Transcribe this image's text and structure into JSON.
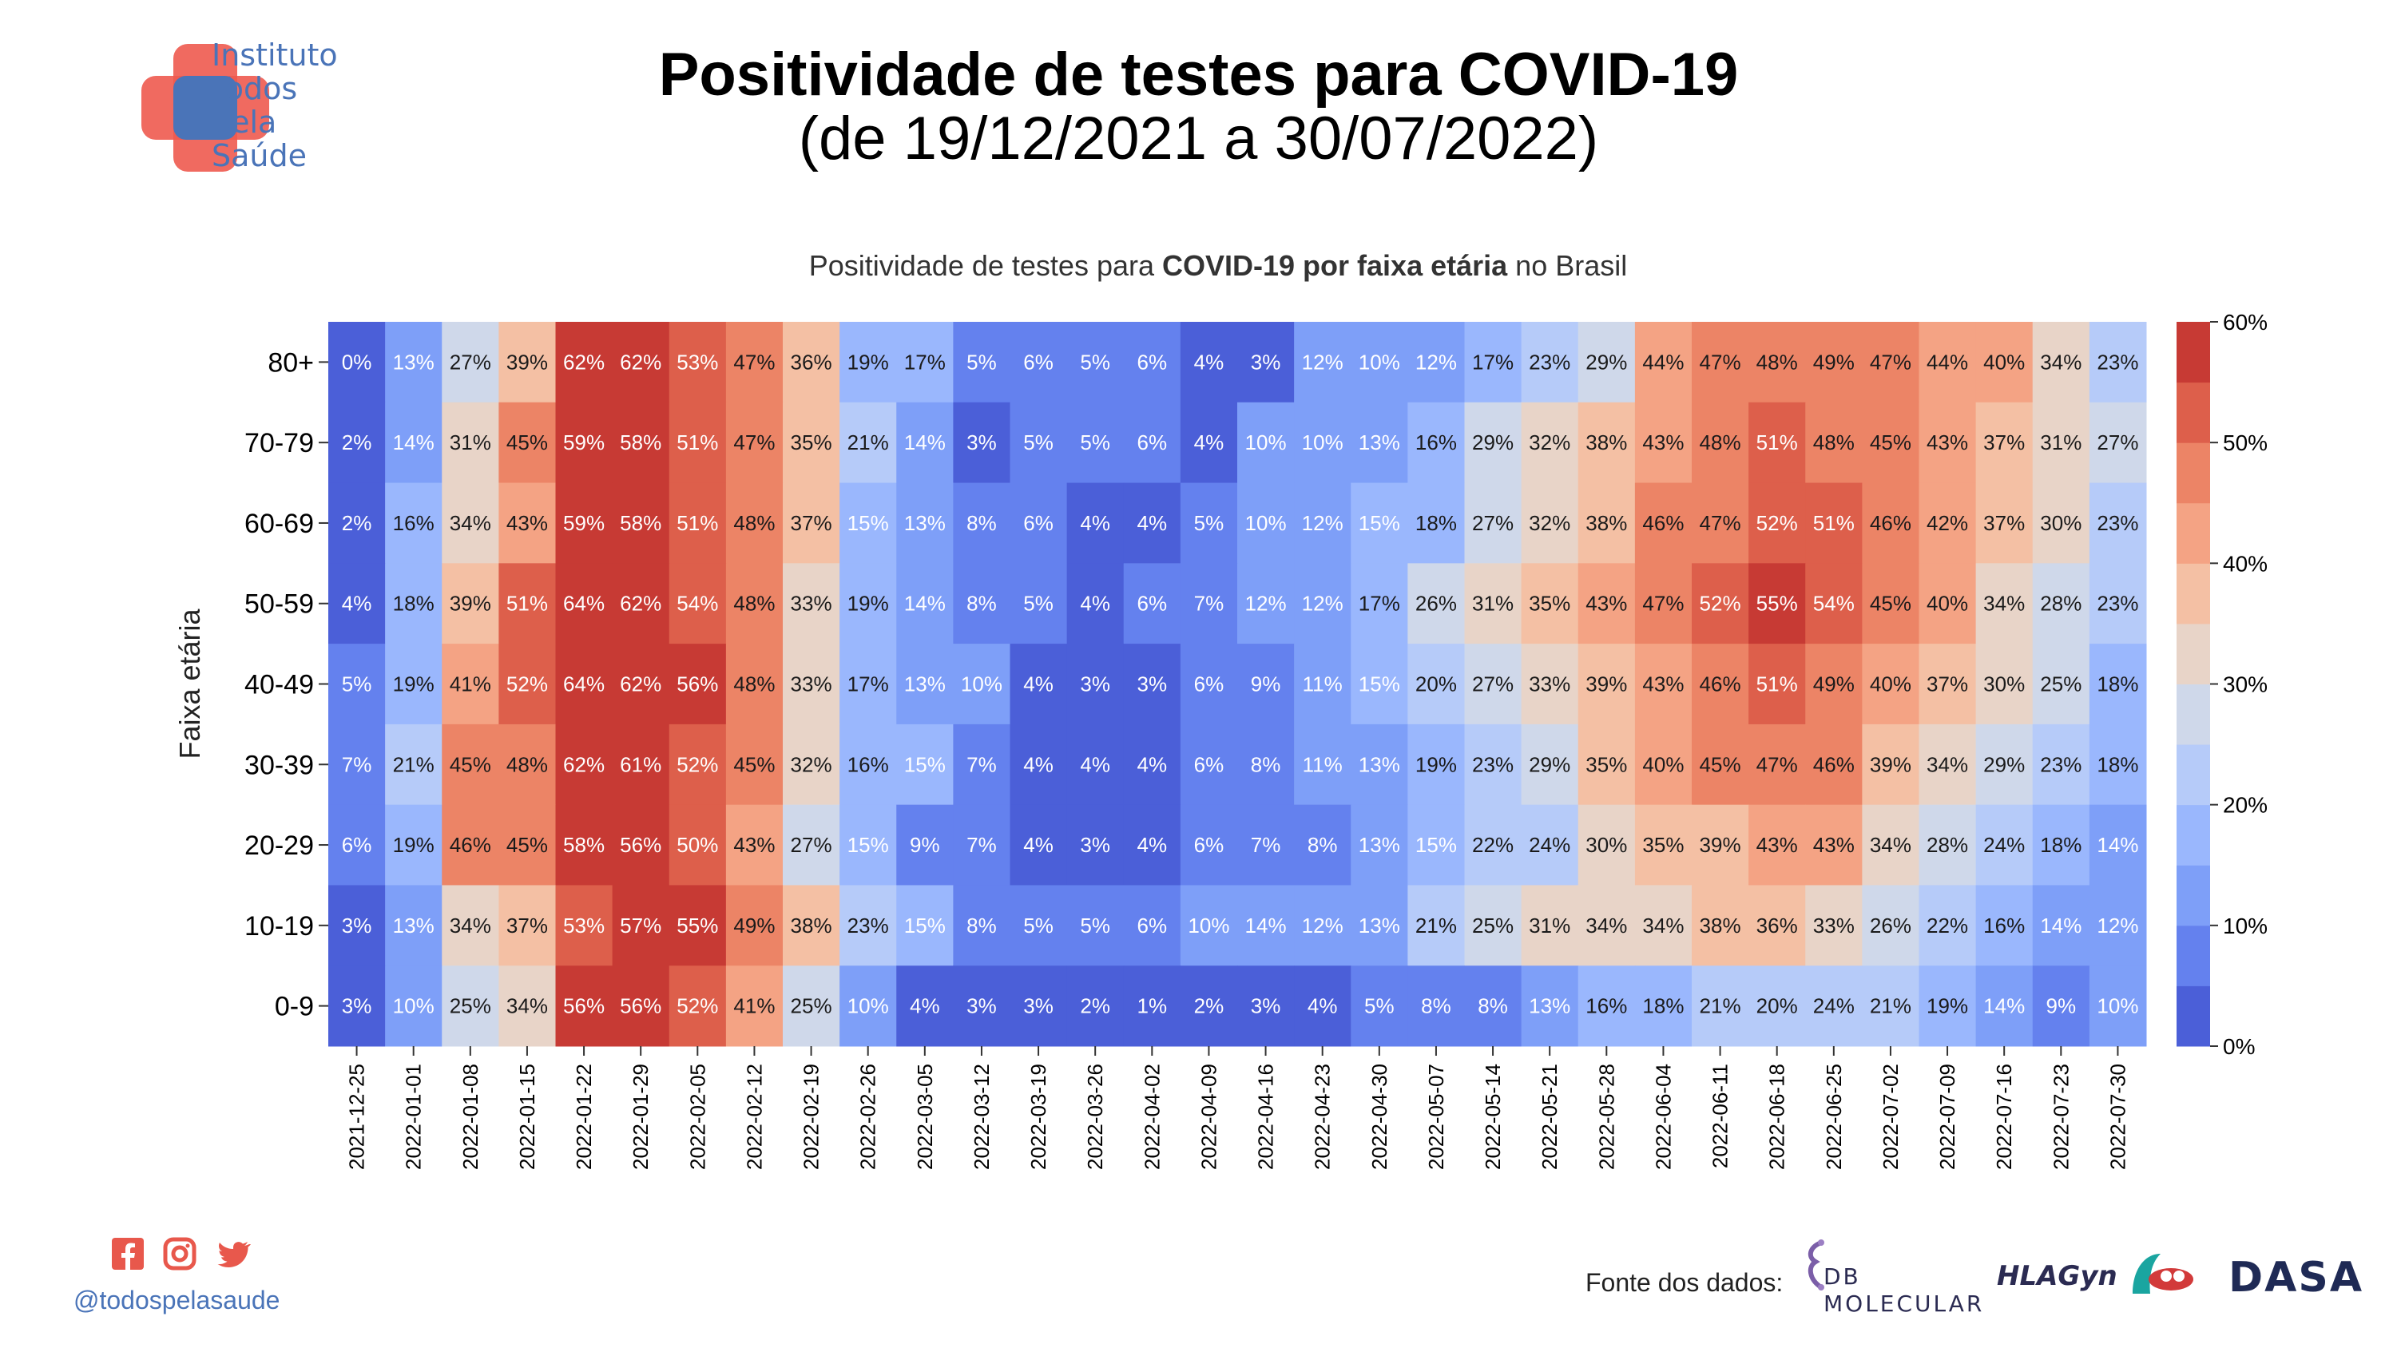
{
  "header": {
    "org_name_lines": [
      "Instituto",
      "Todos",
      "pela",
      "Saúde"
    ],
    "title": "Positividade de testes para COVID-19",
    "subtitle": "(de 19/12/2021 a 30/07/2022)"
  },
  "chart_title": {
    "prefix": "Positividade de testes para ",
    "bold": "COVID-19 por faixa etária",
    "suffix": " no Brasil"
  },
  "footer": {
    "handle": "@todospelasaude",
    "source_label": "Fonte dos dados:",
    "sources": [
      "DB MOLECULAR",
      "HLAGyn",
      "DASA"
    ]
  },
  "colors": {
    "scale": [
      "#4b5fd8",
      "#6481ee",
      "#7e9ff8",
      "#9ab7fd",
      "#b6cbf9",
      "#cfd8ea",
      "#e8d4c8",
      "#f4c0a4",
      "#f4a384",
      "#ec8466",
      "#dd5f4b",
      "#c73a34"
    ],
    "logo_red": "#ee5a4f",
    "logo_blue": "#4a74b8",
    "social_red": "#e8584c"
  },
  "chart_data": {
    "type": "heatmap",
    "title": "Positividade de testes para COVID-19 por faixa etária no Brasil",
    "ylabel": "Faixa etária",
    "xlabel": "",
    "value_unit": "%",
    "colorbar": {
      "min": 0,
      "max": 60,
      "ticks": [
        "0%",
        "10%",
        "20%",
        "30%",
        "40%",
        "50%",
        "60%"
      ]
    },
    "x": [
      "2021-12-25",
      "2022-01-01",
      "2022-01-08",
      "2022-01-15",
      "2022-01-22",
      "2022-01-29",
      "2022-02-05",
      "2022-02-12",
      "2022-02-19",
      "2022-02-26",
      "2022-03-05",
      "2022-03-12",
      "2022-03-19",
      "2022-03-26",
      "2022-04-02",
      "2022-04-09",
      "2022-04-16",
      "2022-04-23",
      "2022-04-30",
      "2022-05-07",
      "2022-05-14",
      "2022-05-21",
      "2022-05-28",
      "2022-06-04",
      "2022-06-11",
      "2022-06-18",
      "2022-06-25",
      "2022-07-02",
      "2022-07-09",
      "2022-07-16",
      "2022-07-23",
      "2022-07-30"
    ],
    "y": [
      "80+",
      "70-79",
      "60-69",
      "50-59",
      "40-49",
      "30-39",
      "20-29",
      "10-19",
      "0-9"
    ],
    "values": [
      [
        0,
        13,
        27,
        39,
        62,
        62,
        53,
        47,
        36,
        19,
        17,
        5,
        6,
        5,
        6,
        4,
        3,
        12,
        10,
        12,
        17,
        23,
        29,
        44,
        47,
        48,
        49,
        47,
        44,
        40,
        34,
        23
      ],
      [
        2,
        14,
        31,
        45,
        59,
        58,
        51,
        47,
        35,
        21,
        14,
        3,
        5,
        5,
        6,
        4,
        10,
        10,
        13,
        16,
        29,
        32,
        38,
        43,
        48,
        51,
        48,
        45,
        43,
        37,
        31,
        27
      ],
      [
        2,
        16,
        34,
        43,
        59,
        58,
        51,
        48,
        37,
        15,
        13,
        8,
        6,
        4,
        4,
        5,
        10,
        12,
        15,
        18,
        27,
        32,
        38,
        46,
        47,
        52,
        51,
        46,
        42,
        37,
        30,
        23
      ],
      [
        4,
        18,
        39,
        51,
        64,
        62,
        54,
        48,
        33,
        19,
        14,
        8,
        5,
        4,
        6,
        7,
        12,
        12,
        17,
        26,
        31,
        35,
        43,
        47,
        52,
        55,
        54,
        45,
        40,
        34,
        28,
        23
      ],
      [
        5,
        19,
        41,
        52,
        64,
        62,
        56,
        48,
        33,
        17,
        13,
        10,
        4,
        3,
        3,
        6,
        9,
        11,
        15,
        20,
        27,
        33,
        39,
        43,
        46,
        51,
        49,
        40,
        37,
        30,
        25,
        18
      ],
      [
        7,
        21,
        45,
        48,
        62,
        61,
        52,
        45,
        32,
        16,
        15,
        7,
        4,
        4,
        4,
        6,
        8,
        11,
        13,
        19,
        23,
        29,
        35,
        40,
        45,
        47,
        46,
        39,
        34,
        29,
        23,
        18
      ],
      [
        6,
        19,
        46,
        45,
        58,
        56,
        50,
        43,
        27,
        15,
        9,
        7,
        4,
        3,
        4,
        6,
        7,
        8,
        13,
        15,
        22,
        24,
        30,
        35,
        39,
        43,
        43,
        34,
        28,
        24,
        18,
        14
      ],
      [
        3,
        13,
        34,
        37,
        53,
        57,
        55,
        49,
        38,
        23,
        15,
        8,
        5,
        5,
        6,
        10,
        14,
        12,
        13,
        21,
        25,
        31,
        34,
        34,
        38,
        36,
        33,
        26,
        22,
        16,
        14,
        12
      ],
      [
        3,
        10,
        25,
        34,
        56,
        56,
        52,
        41,
        25,
        10,
        4,
        3,
        3,
        2,
        1,
        2,
        3,
        4,
        5,
        8,
        8,
        13,
        16,
        18,
        21,
        20,
        24,
        21,
        19,
        14,
        9,
        10
      ]
    ]
  }
}
